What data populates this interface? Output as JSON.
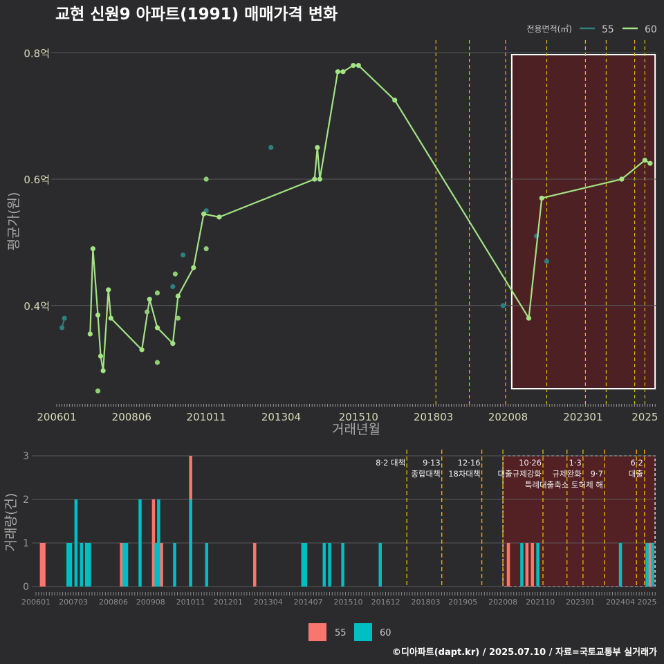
{
  "title": "교현 신원9 아파트(1991) 매매가격 변화",
  "footer": "©디아파트(dapt.kr) / 2025.07.10 / 자료=국토교통부 실거래가",
  "legend_top": {
    "title": "전용면적(㎡)",
    "items": [
      "55",
      "60"
    ]
  },
  "legend_bottom": {
    "items": [
      "55",
      "60"
    ]
  },
  "colors": {
    "background": "#2b2b2d",
    "line60": "#a3e384",
    "point55": "#2e7f7f",
    "bar55": "#f8766d",
    "bar60": "#00bfc4",
    "policy_line": "#e6b800",
    "highlight_fill": "#5a1e22",
    "grid": "#5a5a5a",
    "text": "#e8e8e8",
    "axis_text": "#d8d8b8"
  },
  "chart_data": [
    {
      "type": "line",
      "title": "교현 신원9 아파트(1991) 매매가격 변화",
      "xlabel": "거래년월",
      "ylabel": "평균가(원)",
      "ylim": [
        0.24,
        0.82
      ],
      "y_ticks": [
        0.4,
        0.6,
        0.8
      ],
      "y_tick_labels": [
        "0.4억",
        "0.6억",
        "0.8억"
      ],
      "x_tick_labels": [
        "200601",
        "200806",
        "201011",
        "201304",
        "201510",
        "201803",
        "202008",
        "202301",
        "2025"
      ],
      "x_tick_values": [
        2006.0,
        2008.42,
        2010.83,
        2013.25,
        2015.75,
        2018.17,
        2020.58,
        2023.0,
        2025.0
      ],
      "highlight_range": [
        2020.7,
        2025.33
      ],
      "policy_lines": [
        2018.25,
        2019.33,
        2020.5,
        2021.83,
        2023.08,
        2023.75,
        2024.67,
        2025.0
      ],
      "series": [
        {
          "name": "60",
          "points": [
            [
              2007.08,
              0.355
            ],
            [
              2007.17,
              0.49
            ],
            [
              2007.33,
              0.385
            ],
            [
              2007.42,
              0.32
            ],
            [
              2007.5,
              0.297
            ],
            [
              2007.67,
              0.425
            ],
            [
              2007.75,
              0.38
            ],
            [
              2008.75,
              0.33
            ],
            [
              2009.0,
              0.41
            ],
            [
              2009.25,
              0.365
            ],
            [
              2009.75,
              0.34
            ],
            [
              2009.92,
              0.415
            ],
            [
              2010.42,
              0.46
            ],
            [
              2010.75,
              0.545
            ],
            [
              2011.25,
              0.54
            ],
            [
              2014.33,
              0.6
            ],
            [
              2014.42,
              0.65
            ],
            [
              2014.5,
              0.6
            ],
            [
              2015.08,
              0.77
            ],
            [
              2015.25,
              0.77
            ],
            [
              2015.58,
              0.78
            ],
            [
              2015.75,
              0.78
            ],
            [
              2016.92,
              0.725
            ],
            [
              2021.25,
              0.38
            ],
            [
              2021.67,
              0.57
            ],
            [
              2024.25,
              0.6
            ],
            [
              2025.0,
              0.63
            ],
            [
              2025.17,
              0.625
            ]
          ],
          "extra_points": [
            [
              2007.33,
              0.265
            ],
            [
              2009.25,
              0.31
            ],
            [
              2009.25,
              0.42
            ],
            [
              2009.83,
              0.45
            ],
            [
              2009.92,
              0.38
            ],
            [
              2010.83,
              0.6
            ],
            [
              2010.83,
              0.49
            ],
            [
              2008.92,
              0.39
            ]
          ]
        },
        {
          "name": "55",
          "points": [
            [
              2006.17,
              0.365
            ],
            [
              2006.25,
              0.38
            ],
            [
              2009.75,
              0.43
            ],
            [
              2010.08,
              0.48
            ],
            [
              2010.83,
              0.55
            ],
            [
              2012.92,
              0.65
            ],
            [
              2020.42,
              0.4
            ],
            [
              2021.5,
              0.51
            ],
            [
              2021.83,
              0.47
            ]
          ]
        }
      ]
    },
    {
      "type": "bar",
      "ylabel": "거래량(건)",
      "ylim": [
        0,
        3
      ],
      "y_ticks": [
        0,
        1,
        2,
        3
      ],
      "y_tick_labels": [
        "0",
        "1",
        "2",
        "3"
      ],
      "x_tick_labels": [
        "200601",
        "200703",
        "200806",
        "200908",
        "201011",
        "201201",
        "201304",
        "201407",
        "201510",
        "201612",
        "201803",
        "201905",
        "202008",
        "202110",
        "202301",
        "202404",
        "2025"
      ],
      "x_tick_values": [
        2006.0,
        2007.17,
        2008.42,
        2009.58,
        2010.83,
        2012.0,
        2013.25,
        2014.5,
        2015.75,
        2016.92,
        2018.17,
        2019.33,
        2020.58,
        2021.75,
        2023.0,
        2024.25,
        2025.08
      ],
      "highlight_range": [
        2020.58,
        2025.33
      ],
      "policy_lines": [
        2017.58,
        2018.67,
        2019.92,
        2020.58,
        2021.83,
        2022.58,
        2023.08,
        2023.75,
        2024.75,
        2025.0
      ],
      "annotations": [
        {
          "x": 2017.58,
          "lines": [
            "8·2 대책"
          ]
        },
        {
          "x": 2018.67,
          "lines": [
            "9·13",
            "종합대책"
          ]
        },
        {
          "x": 2019.92,
          "lines": [
            "12·16",
            "18차대책"
          ]
        },
        {
          "x": 2021.83,
          "lines": [
            "10·26",
            "대출규제강화"
          ]
        },
        {
          "x": 2023.08,
          "lines": [
            "1·3",
            "규제완화"
          ]
        },
        {
          "x": 2023.75,
          "lines": [
            "",
            "9·7",
            "특례대출축소 토허제 해"
          ]
        },
        {
          "x": 2025.0,
          "lines": [
            "6·2",
            "대출"
          ]
        }
      ],
      "series": [
        {
          "name": "55",
          "bars": [
            [
              2006.17,
              1
            ],
            [
              2006.25,
              1
            ],
            [
              2008.67,
              1
            ],
            [
              2009.67,
              2
            ],
            [
              2009.92,
              1
            ],
            [
              2010.83,
              3
            ],
            [
              2012.83,
              1
            ],
            [
              2020.75,
              1
            ],
            [
              2021.33,
              1
            ],
            [
              2021.5,
              1
            ],
            [
              2025.17,
              1
            ]
          ]
        },
        {
          "name": "60",
          "bars": [
            [
              2007.0,
              1
            ],
            [
              2007.08,
              1
            ],
            [
              2007.25,
              2
            ],
            [
              2007.42,
              1
            ],
            [
              2007.58,
              1
            ],
            [
              2007.67,
              1
            ],
            [
              2008.75,
              1
            ],
            [
              2008.83,
              1
            ],
            [
              2009.25,
              2
            ],
            [
              2009.75,
              1
            ],
            [
              2009.83,
              2
            ],
            [
              2010.33,
              1
            ],
            [
              2010.83,
              2
            ],
            [
              2011.33,
              1
            ],
            [
              2014.33,
              1
            ],
            [
              2014.42,
              1
            ],
            [
              2015.0,
              1
            ],
            [
              2015.17,
              1
            ],
            [
              2015.58,
              1
            ],
            [
              2016.75,
              1
            ],
            [
              2021.17,
              1
            ],
            [
              2021.67,
              1
            ],
            [
              2024.25,
              1
            ],
            [
              2025.08,
              1
            ],
            [
              2025.25,
              1
            ]
          ]
        }
      ]
    }
  ]
}
